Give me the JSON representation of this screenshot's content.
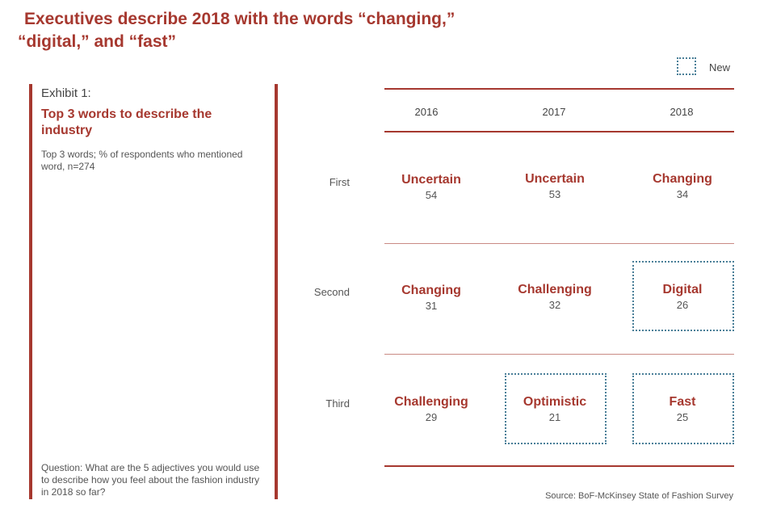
{
  "header": {
    "title_line1": "Executives describe 2018 with the words “changing,”",
    "title_line2": "“digital,” and “fast”"
  },
  "legend": {
    "new_label": "New"
  },
  "panel": {
    "exhibit": "Exhibit 1:",
    "subtitle": "Top 3 words to describe the industry",
    "note": "Top 3 words; % of respondents who mentioned word, n=274",
    "question": "Question: What are the 5 adjectives you would use to describe how you feel about the fashion industry in 2018 so far?"
  },
  "source": "Source: BoF-McKinsey State of Fashion Survey",
  "colors": {
    "accent": "#a6382f",
    "new_border": "#4a7f98"
  },
  "chart_data": {
    "type": "table",
    "columns": [
      "2016",
      "2017",
      "2018"
    ],
    "rows": [
      "First",
      "Second",
      "Third"
    ],
    "cells": [
      [
        {
          "word": "Uncertain",
          "value": 54,
          "new": false
        },
        {
          "word": "Uncertain",
          "value": 53,
          "new": false
        },
        {
          "word": "Changing",
          "value": 34,
          "new": false
        }
      ],
      [
        {
          "word": "Changing",
          "value": 31,
          "new": false
        },
        {
          "word": "Challenging",
          "value": 32,
          "new": false
        },
        {
          "word": "Digital",
          "value": 26,
          "new": true
        }
      ],
      [
        {
          "word": "Challenging",
          "value": 29,
          "new": false
        },
        {
          "word": "Optimistic",
          "value": 21,
          "new": true
        },
        {
          "word": "Fast",
          "value": 25,
          "new": true
        }
      ]
    ]
  }
}
